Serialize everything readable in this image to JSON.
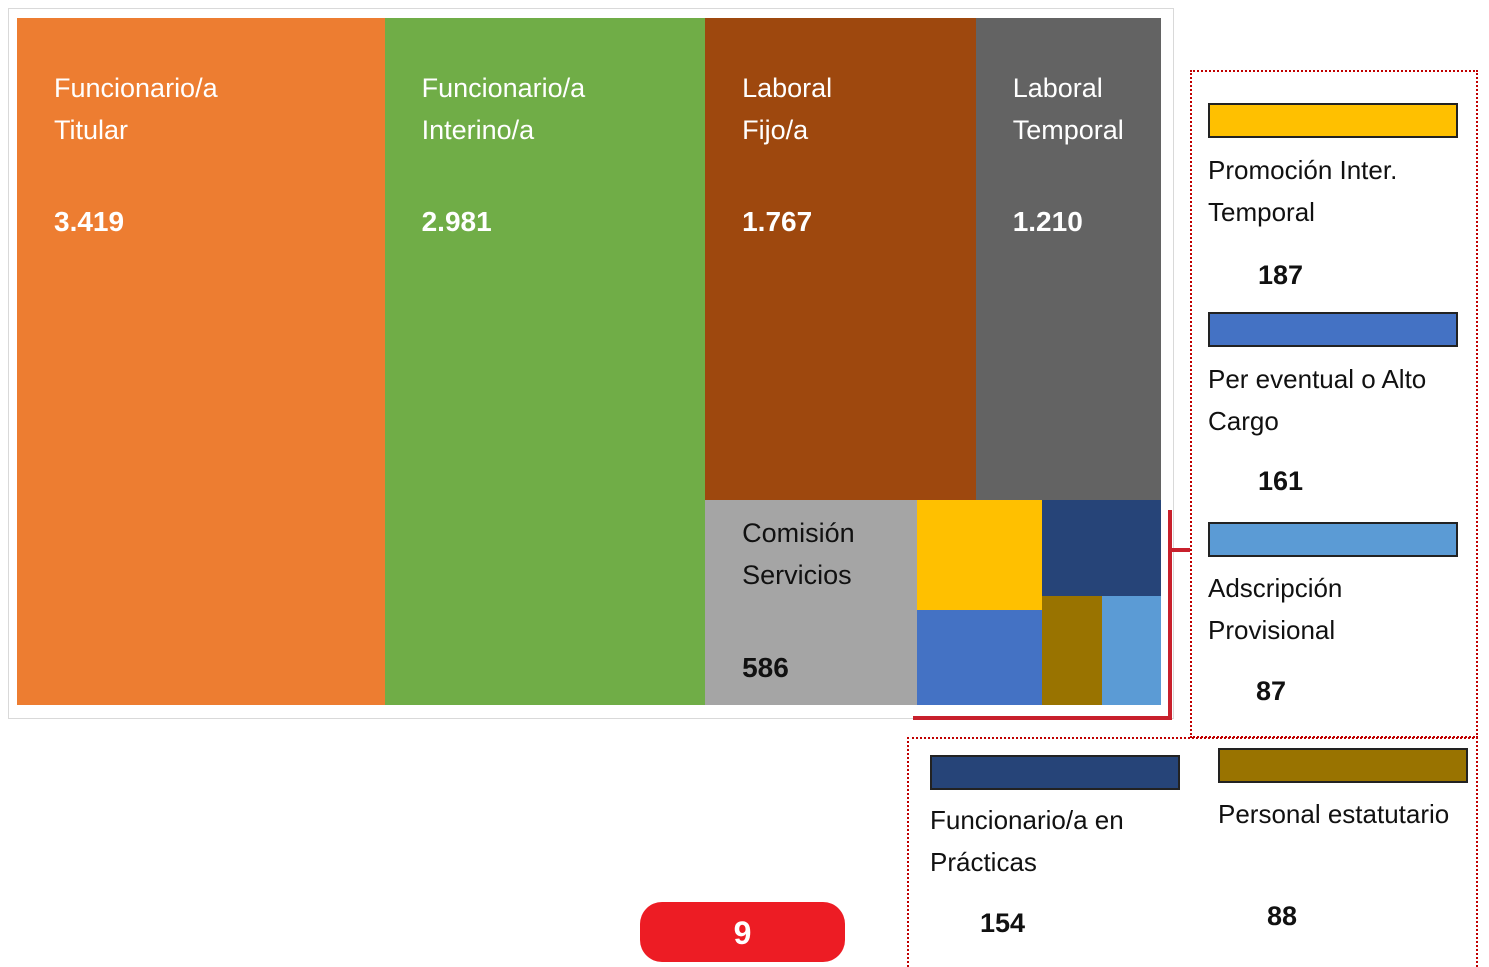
{
  "chart_data": {
    "type": "treemap",
    "items": [
      {
        "name": "Funcionario/a Titular",
        "value": 3419,
        "value_label": "3.419",
        "color": "#ED7D31"
      },
      {
        "name": "Funcionario/a Interino/a",
        "value": 2981,
        "value_label": "2.981",
        "color": "#70AD47"
      },
      {
        "name": "Laboral Fijo/a",
        "value": 1767,
        "value_label": "1.767",
        "color": "#9E480E"
      },
      {
        "name": "Laboral Temporal",
        "value": 1210,
        "value_label": "1.210",
        "color": "#636363"
      },
      {
        "name": "Comisión Servicios",
        "value": 586,
        "value_label": "586",
        "color": "#A5A5A5"
      },
      {
        "name": "Promoción Inter. Temporal",
        "value": 187,
        "value_label": "187",
        "color": "#FFC000"
      },
      {
        "name": "Per eventual o Alto Cargo",
        "value": 161,
        "value_label": "161",
        "color": "#4472C4"
      },
      {
        "name": "Funcionario/a en Prácticas",
        "value": 154,
        "value_label": "154",
        "color": "#264478"
      },
      {
        "name": "Personal estatutario",
        "value": 88,
        "value_label": "88",
        "color": "#997300"
      },
      {
        "name": "Adscripción Provisional",
        "value": 87,
        "value_label": "87",
        "color": "#5B9BD5"
      }
    ]
  },
  "page_number": "9"
}
